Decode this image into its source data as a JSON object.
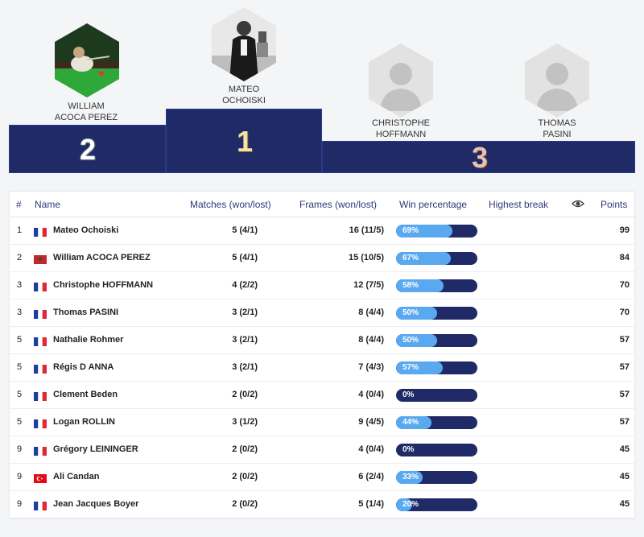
{
  "podium": {
    "first": {
      "name_line1": "MATEO",
      "name_line2": "OCHOISKI",
      "rank": "1"
    },
    "second": {
      "name_line1": "WILLIAM",
      "name_line2": "ACOCA PEREZ",
      "rank": "2"
    },
    "third_a": {
      "name_line1": "CHRISTOPHE",
      "name_line2": "HOFFMANN"
    },
    "third_b": {
      "name_line1": "THOMAS",
      "name_line2": "PASINI"
    },
    "third_rank": "3"
  },
  "table": {
    "headers": {
      "rank": "#",
      "name": "Name",
      "matches": "Matches (won/lost)",
      "frames": "Frames (won/lost)",
      "win": "Win percentage",
      "break": "Highest break",
      "view_icon": "eye-icon",
      "points": "Points"
    },
    "rows": [
      {
        "rank": "1",
        "flag": "fr",
        "name": "Mateo Ochoiski",
        "matches": "5 (4/1)",
        "frames": "16 (11/5)",
        "win_label": "69%",
        "win": 69,
        "break": "",
        "points": "99"
      },
      {
        "rank": "2",
        "flag": "ma",
        "name": "William ACOCA PEREZ",
        "matches": "5 (4/1)",
        "frames": "15 (10/5)",
        "win_label": "67%",
        "win": 67,
        "break": "",
        "points": "84"
      },
      {
        "rank": "3",
        "flag": "fr",
        "name": "Christophe HOFFMANN",
        "matches": "4 (2/2)",
        "frames": "12 (7/5)",
        "win_label": "58%",
        "win": 58,
        "break": "",
        "points": "70"
      },
      {
        "rank": "3",
        "flag": "fr",
        "name": "Thomas PASINI",
        "matches": "3 (2/1)",
        "frames": "8 (4/4)",
        "win_label": "50%",
        "win": 50,
        "break": "",
        "points": "70"
      },
      {
        "rank": "5",
        "flag": "fr",
        "name": "Nathalie Rohmer",
        "matches": "3 (2/1)",
        "frames": "8 (4/4)",
        "win_label": "50%",
        "win": 50,
        "break": "",
        "points": "57"
      },
      {
        "rank": "5",
        "flag": "fr",
        "name": "Régis D ANNA",
        "matches": "3 (2/1)",
        "frames": "7 (4/3)",
        "win_label": "57%",
        "win": 57,
        "break": "",
        "points": "57"
      },
      {
        "rank": "5",
        "flag": "fr",
        "name": "Clement Beden",
        "matches": "2 (0/2)",
        "frames": "4 (0/4)",
        "win_label": "0%",
        "win": 0,
        "break": "",
        "points": "57"
      },
      {
        "rank": "5",
        "flag": "fr",
        "name": "Logan ROLLIN",
        "matches": "3 (1/2)",
        "frames": "9 (4/5)",
        "win_label": "44%",
        "win": 44,
        "break": "",
        "points": "57"
      },
      {
        "rank": "9",
        "flag": "fr",
        "name": "Grégory LEININGER",
        "matches": "2 (0/2)",
        "frames": "4 (0/4)",
        "win_label": "0%",
        "win": 0,
        "break": "",
        "points": "45"
      },
      {
        "rank": "9",
        "flag": "tr",
        "name": "Ali Candan",
        "matches": "2 (0/2)",
        "frames": "6 (2/4)",
        "win_label": "33%",
        "win": 33,
        "break": "",
        "points": "45"
      },
      {
        "rank": "9",
        "flag": "fr",
        "name": "Jean Jacques Boyer",
        "matches": "2 (0/2)",
        "frames": "5 (1/4)",
        "win_label": "20%",
        "win": 20,
        "break": "",
        "points": "45"
      }
    ]
  },
  "colors": {
    "podium_blue": "#1f2a66",
    "bar_track": "#1f2a66",
    "bar_fill": "#5aa9f0",
    "header_text": "#2d3a7a"
  }
}
